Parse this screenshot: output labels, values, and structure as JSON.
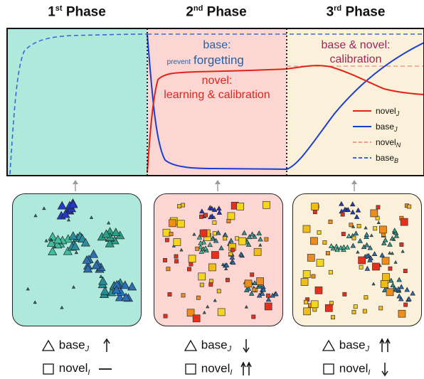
{
  "phases": [
    {
      "ordinal": "1",
      "suffix": "st",
      "word": "Phase"
    },
    {
      "ordinal": "2",
      "suffix": "nd",
      "word": "Phase"
    },
    {
      "ordinal": "3",
      "suffix": "rd",
      "word": "Phase"
    }
  ],
  "annotations": {
    "phase2_base": "base:",
    "phase2_prevent_small": "prevent",
    "phase2_forgetting": "forgetting",
    "phase2_novel": "novel:",
    "phase2_novel_detail": "learning & calibration",
    "phase3_line1": "base & novel:",
    "phase3_line2": "calibration"
  },
  "legend": [
    {
      "name": "novel",
      "sub": "J",
      "color": "#e02418",
      "dash": false
    },
    {
      "name": "base",
      "sub": "J",
      "color": "#1a3fd0",
      "dash": false
    },
    {
      "name": "novel",
      "sub": "N",
      "color": "#f09a8a",
      "dash": true
    },
    {
      "name": "base",
      "sub": "B",
      "color": "#3a68d8",
      "dash": true
    }
  ],
  "colors": {
    "phase1_bg": "#aee9dc",
    "phase2_bg": "#fbd6d3",
    "phase3_bg": "#fbf0d9",
    "base_color": "#1a3fd0",
    "novel_color": "#e02418",
    "phase2_base_text": "#2a5fa0",
    "phase3_text": "#a02658"
  },
  "bottom_labels": [
    {
      "base_label": "base",
      "base_sub": "J",
      "base_trend": "up",
      "novel_label": "novel",
      "novel_sub": "I",
      "novel_trend": "flat"
    },
    {
      "base_label": "base",
      "base_sub": "J",
      "base_trend": "down",
      "novel_label": "novel",
      "novel_sub": "I",
      "novel_trend": "up-up"
    },
    {
      "base_label": "base",
      "base_sub": "J",
      "base_trend": "up-up",
      "novel_label": "novel",
      "novel_sub": "I",
      "novel_trend": "down"
    }
  ]
}
